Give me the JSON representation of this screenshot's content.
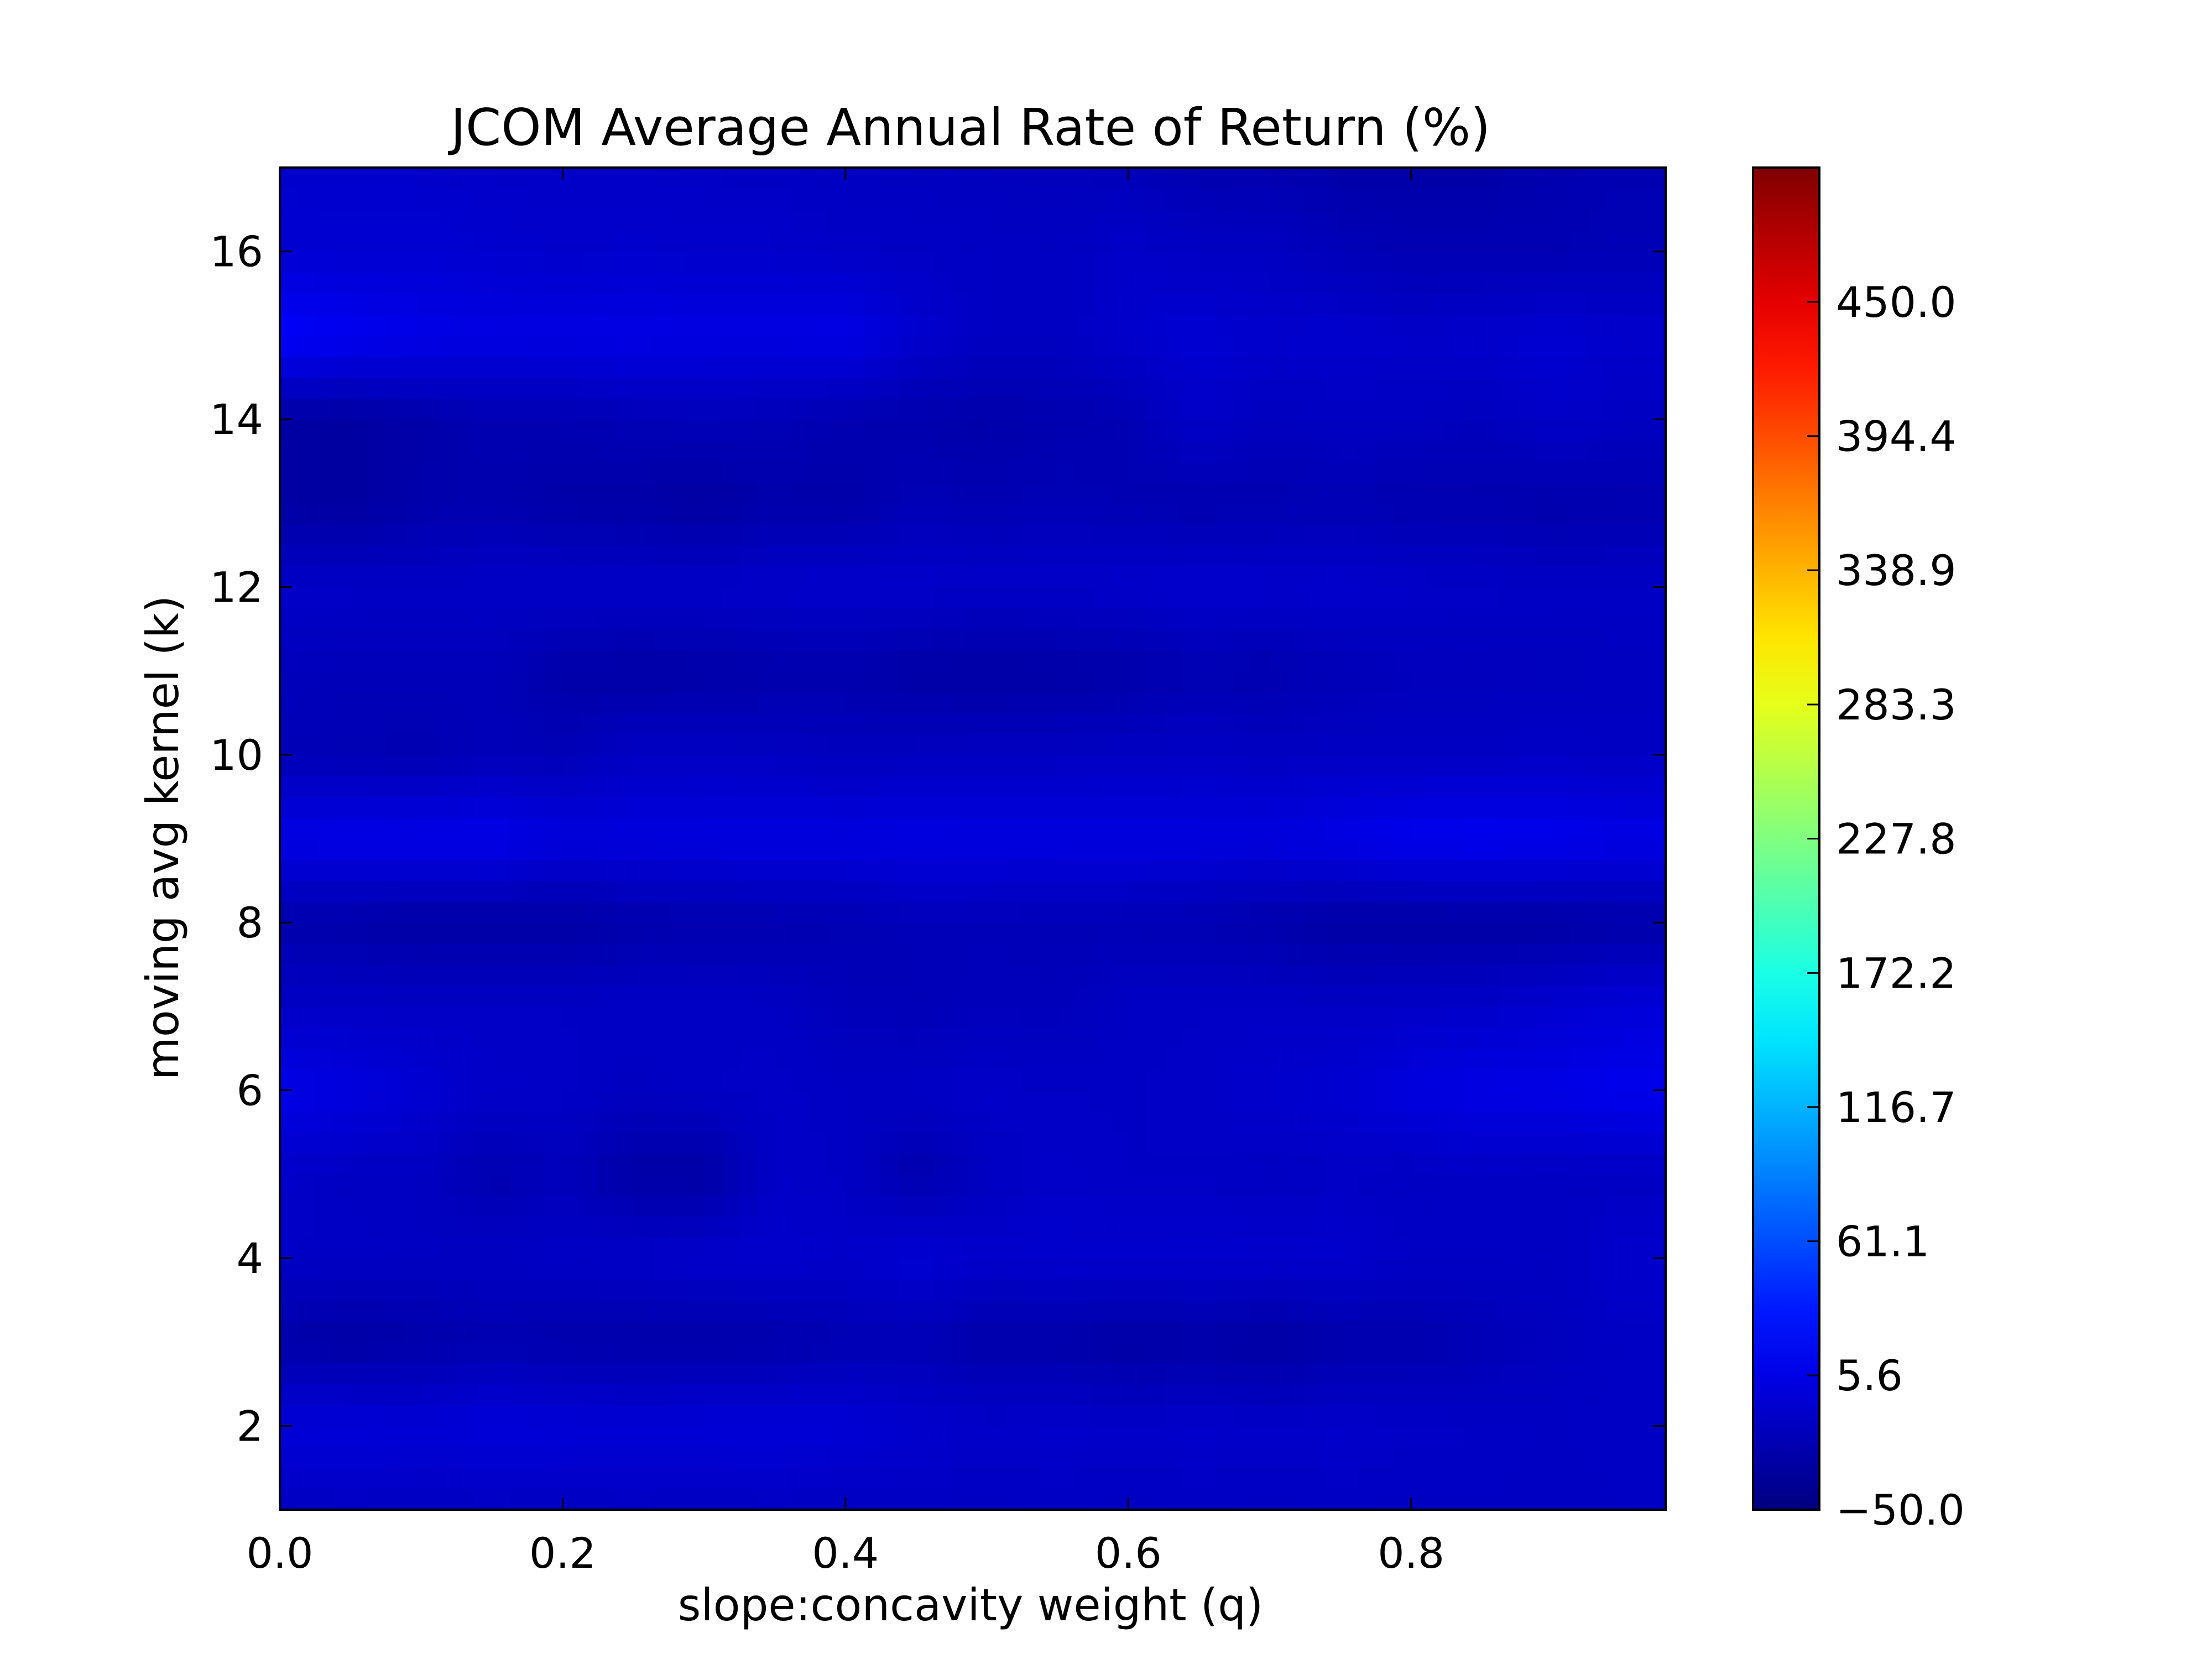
{
  "chart_data": {
    "type": "heatmap",
    "title": "JCOM Average Annual Rate of Return (%)",
    "xlabel": "slope:concavity weight (q)",
    "ylabel": "moving avg kernel (k)",
    "xlim": [
      0.0,
      0.98
    ],
    "ylim": [
      1,
      17
    ],
    "x_ticks": [
      0.0,
      0.2,
      0.4,
      0.6,
      0.8
    ],
    "x_tick_labels": [
      "0.0",
      "0.2",
      "0.4",
      "0.6",
      "0.8"
    ],
    "y_ticks": [
      2,
      4,
      6,
      8,
      10,
      12,
      14,
      16
    ],
    "y_tick_labels": [
      "2",
      "4",
      "6",
      "8",
      "10",
      "12",
      "14",
      "16"
    ],
    "colormap": "jet",
    "colorbar": {
      "min": -50.0,
      "max": 505.6,
      "ticks": [
        -50.0,
        5.6,
        61.1,
        116.7,
        172.2,
        227.8,
        283.3,
        338.9,
        394.4,
        450.0
      ],
      "tick_labels": [
        "−50.0",
        "5.6",
        "61.1",
        "116.7",
        "172.2",
        "227.8",
        "283.3",
        "338.9",
        "394.4",
        "450.0"
      ]
    },
    "x": [
      0.0,
      0.05,
      0.1,
      0.15,
      0.2,
      0.25,
      0.3,
      0.35,
      0.4,
      0.45,
      0.5,
      0.55,
      0.6,
      0.65,
      0.7,
      0.75,
      0.8,
      0.85,
      0.9,
      0.95
    ],
    "y": [
      1,
      2,
      3,
      4,
      5,
      6,
      7,
      8,
      9,
      10,
      11,
      12,
      13,
      14,
      15,
      16,
      17
    ],
    "z": [
      [
        -14,
        -13,
        -14,
        -13,
        -14,
        -13,
        -14,
        -13,
        -14,
        -13,
        -14,
        -13,
        -14,
        -13,
        -14,
        -13,
        -14,
        -13,
        -14,
        -13
      ],
      [
        -2,
        -1,
        -3,
        -1,
        -2,
        -3,
        -2,
        -2,
        -3,
        -8,
        -10,
        -9,
        -10,
        -9,
        -10,
        -9,
        -11,
        -12,
        -13,
        -12
      ],
      [
        -27,
        -30,
        -27,
        -23,
        -26,
        -27,
        -28,
        -26,
        -22,
        -21,
        -27,
        -27,
        -30,
        -28,
        -31,
        -26,
        -25,
        -21,
        -16,
        -13
      ],
      [
        -12,
        -12,
        -14,
        -13,
        -12,
        -10,
        -8,
        -8,
        -10,
        -4,
        -9,
        -7,
        -8,
        -7,
        -8,
        -8,
        -12,
        -12,
        -14,
        -8
      ],
      [
        -10,
        -14,
        -14,
        -24,
        -17,
        -29,
        -30,
        -11,
        -12,
        -25,
        -15,
        -10,
        -12,
        -12,
        -14,
        -12,
        -14,
        -12,
        -14,
        -13
      ],
      [
        6,
        2,
        -5,
        -10,
        -11,
        -15,
        -12,
        -11,
        -13,
        -12,
        -10,
        -12,
        -12,
        -11,
        -8,
        -6,
        2,
        5,
        6,
        10
      ],
      [
        -11,
        -12,
        -12,
        -12,
        -12,
        -12,
        -12,
        -13,
        -18,
        -20,
        -17,
        -18,
        -13,
        -12,
        -12,
        -12,
        -11,
        -10,
        -6,
        -2
      ],
      [
        -26,
        -27,
        -30,
        -30,
        -30,
        -26,
        -24,
        -24,
        -22,
        -19,
        -19,
        -20,
        -20,
        -22,
        -26,
        -30,
        -30,
        -30,
        -30,
        -27
      ],
      [
        6,
        7,
        7,
        8,
        1,
        1,
        2,
        3,
        2,
        4,
        3,
        3,
        2,
        2,
        1,
        6,
        10,
        11,
        10,
        6
      ],
      [
        -20,
        -21,
        -23,
        -19,
        -20,
        -13,
        -13,
        -14,
        -16,
        -15,
        -14,
        -14,
        -13,
        -12,
        -14,
        -13,
        -13,
        -13,
        -12,
        -13
      ],
      [
        -17,
        -19,
        -18,
        -19,
        -27,
        -29,
        -28,
        -26,
        -25,
        -29,
        -30,
        -29,
        -27,
        -22,
        -24,
        -20,
        -17,
        -17,
        -16,
        -15
      ],
      [
        -10,
        -11,
        -12,
        -11,
        -10,
        -10,
        -10,
        -9,
        -8,
        -9,
        -10,
        -10,
        -9,
        -7,
        -8,
        -8,
        -10,
        -11,
        -12,
        -12
      ],
      [
        -30,
        -33,
        -26,
        -24,
        -28,
        -29,
        -32,
        -26,
        -28,
        -20,
        -22,
        -20,
        -22,
        -24,
        -23,
        -21,
        -24,
        -24,
        -26,
        -24
      ],
      [
        -31,
        -32,
        -27,
        -23,
        -22,
        -20,
        -18,
        -20,
        -23,
        -25,
        -27,
        -24,
        -22,
        -10,
        -16,
        -14,
        -14,
        -17,
        -10,
        -14
      ],
      [
        18,
        12,
        7,
        5,
        4,
        6,
        4,
        4,
        6,
        -7,
        -13,
        -14,
        -8,
        -5,
        -8,
        -7,
        -10,
        -8,
        -5,
        -8
      ],
      [
        -5,
        -6,
        -5,
        -7,
        -9,
        -8,
        -9,
        -9,
        -11,
        -12,
        -13,
        -14,
        -10,
        -13,
        -14,
        -19,
        -22,
        -22,
        -22,
        -20
      ],
      [
        -8,
        -8,
        -9,
        -10,
        -11,
        -11,
        -12,
        -13,
        -14,
        -15,
        -16,
        -17,
        -18,
        -23,
        -24,
        -27,
        -28,
        -28,
        -24,
        -22
      ]
    ]
  }
}
